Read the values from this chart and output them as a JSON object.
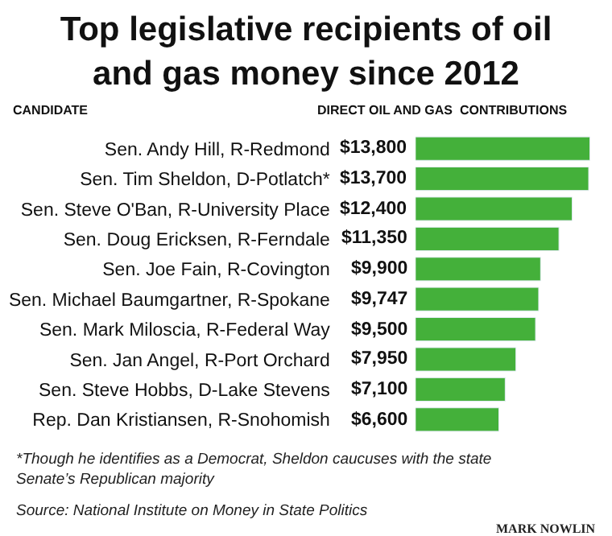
{
  "chart_data": {
    "type": "bar",
    "orientation": "horizontal",
    "title": "Top legislative recipients of oil and gas money since 2012",
    "ylabel": "CANDIDATE",
    "xlabel": "DIRECT OIL AND GAS  CONTRIBUTIONS",
    "categories": [
      "Sen. Andy Hill, R-Redmond",
      "Sen. Tim Sheldon, D-Potlatch*",
      "Sen. Steve O'Ban, R-University Place",
      "Sen. Doug Ericksen, R-Ferndale",
      "Sen. Joe Fain, R-Covington",
      "Sen. Michael Baumgartner, R-Spokane",
      "Sen. Mark Miloscia, R-Federal Way",
      "Sen. Jan Angel, R-Port Orchard",
      "Sen. Steve Hobbs, D-Lake Stevens",
      "Rep. Dan Kristiansen, R-Snohomish"
    ],
    "values": [
      13800,
      13700,
      12400,
      11350,
      9900,
      9747,
      9500,
      7950,
      7100,
      6600
    ],
    "value_labels": [
      "$13,800",
      "$13,700",
      "$12,400",
      "$11,350",
      "$9,900",
      "$9,747",
      "$9,500",
      "$7,950",
      "$7,100",
      "$6,600"
    ],
    "color": "#44b03a",
    "tick_labels": "y",
    "legend": false,
    "annotations": [
      "*Though he identifies as a Democrat, Sheldon caucuses with the state Senate’s Republican majority",
      "Source: National Institute on Money in State Politics",
      "MARK NOWLIN"
    ]
  }
}
